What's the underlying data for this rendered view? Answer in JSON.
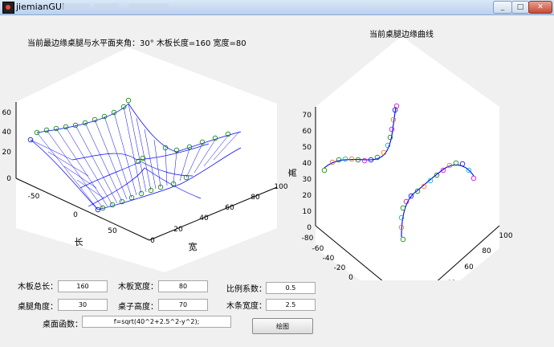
{
  "window": {
    "title": "jiemianGUI"
  },
  "titles": {
    "left": "当前最边缘桌腿与水平面夹角：30°  木板长度=160  宽度=80",
    "right": "当前桌腿边缘曲线"
  },
  "axes": {
    "left": {
      "z_ticks": [
        "0",
        "20",
        "40",
        "60"
      ],
      "x_ticks": [
        "-50",
        "0",
        "50"
      ],
      "y_ticks": [
        "0",
        "20",
        "40",
        "60",
        "80",
        "100"
      ],
      "xlabel": "长",
      "ylabel": "宽"
    },
    "right": {
      "z_ticks": [
        "0",
        "10",
        "20",
        "30",
        "40",
        "50",
        "60",
        "70"
      ],
      "x_ticks": [
        "-80",
        "-60",
        "-40",
        "-20",
        "0",
        "20",
        "40",
        "60",
        "80"
      ],
      "y_ticks": [
        "0",
        "20",
        "40",
        "60",
        "80",
        "100"
      ],
      "xlabel": "长",
      "ylabel": "宽",
      "zlabel": "高"
    }
  },
  "form": {
    "total_length": {
      "label": "木板总长：",
      "value": "160"
    },
    "board_width": {
      "label": "木板宽度：",
      "value": "80"
    },
    "scale_factor": {
      "label": "比例系数：",
      "value": "0.5"
    },
    "leg_angle": {
      "label": "桌腿角度：",
      "value": "30"
    },
    "table_height": {
      "label": "桌子高度：",
      "value": "70"
    },
    "strip_width": {
      "label": "木条宽度：",
      "value": "2.5"
    },
    "surface_function": {
      "label": "桌面函数：",
      "value": "f=sqrt(40^2+2.5^2-y^2);"
    },
    "draw_button": {
      "label": "绘图"
    }
  },
  "colors": {
    "line": "#0000ff",
    "marker": "#008000",
    "panel": "#ffffff",
    "bg": "#f0f0f0"
  }
}
